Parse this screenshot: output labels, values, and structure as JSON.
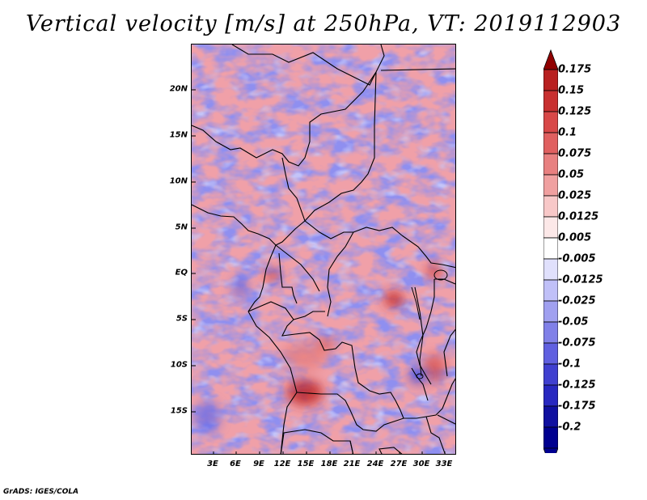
{
  "title": "Vertical velocity [m/s] at 250hPa, VT: 2019112903",
  "footer": "GrADS: IGES/COLA",
  "map": {
    "variable": "Vertical velocity",
    "units": "m/s",
    "level": "250hPa",
    "valid_time": "2019112903",
    "lat_labels": [
      "20N",
      "15N",
      "10N",
      "5N",
      "EQ",
      "5S",
      "10S",
      "15S"
    ],
    "lon_labels": [
      "3E",
      "6E",
      "9E",
      "12E",
      "15E",
      "18E",
      "21E",
      "24E",
      "27E",
      "30E",
      "33E"
    ]
  },
  "colorbar": {
    "labels": [
      "0.175",
      "0.15",
      "0.125",
      "0.1",
      "0.075",
      "0.05",
      "0.025",
      "0.0125",
      "0.005",
      "-0.005",
      "-0.0125",
      "-0.025",
      "-0.05",
      "-0.075",
      "-0.1",
      "-0.125",
      "-0.175",
      "-0.2"
    ],
    "colors": [
      "#a01818",
      "#b82020",
      "#c83030",
      "#d84848",
      "#e06060",
      "#e88080",
      "#f0a0a0",
      "#f8c8c8",
      "#fce8e8",
      "#ffffff",
      "#e0e0fc",
      "#c0c0f8",
      "#a0a0f0",
      "#8080e8",
      "#6060e0",
      "#4040d0",
      "#2828c0",
      "#1010a0",
      "#000090"
    ],
    "top_arrow_color": "#900000",
    "bottom_arrow_color": "#000090"
  }
}
